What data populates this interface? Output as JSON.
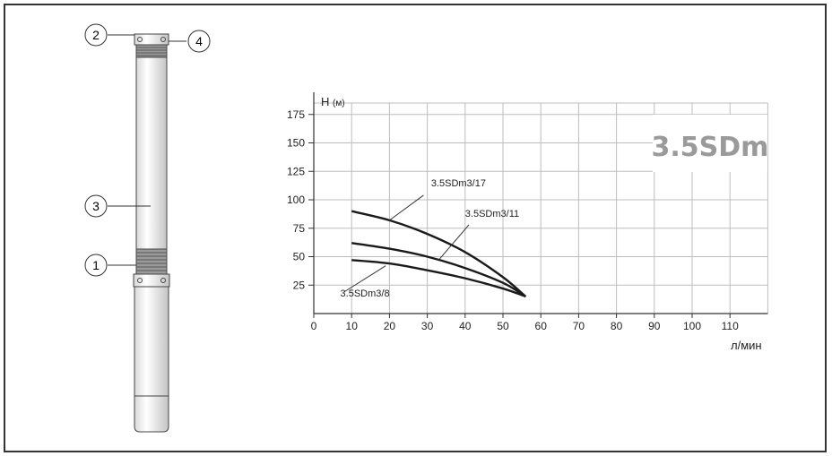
{
  "pump": {
    "callouts": [
      "1",
      "2",
      "3",
      "4"
    ]
  },
  "chart_data": {
    "type": "line",
    "ylabel": "H",
    "ylabel_unit": "(м)",
    "xlabel": "л/мин",
    "model_badge": "3.5SDm",
    "x_ticks": [
      0,
      10,
      20,
      30,
      40,
      50,
      60,
      70,
      80,
      90,
      100,
      110
    ],
    "y_ticks": [
      25,
      50,
      75,
      100,
      125,
      150,
      175
    ],
    "xlim": [
      0,
      120
    ],
    "ylim": [
      0,
      185
    ],
    "grid": true,
    "series": [
      {
        "name": "3.5SDm3/17",
        "x": [
          10,
          20,
          30,
          40,
          50,
          56
        ],
        "y": [
          90,
          82,
          70,
          54,
          32,
          15
        ]
      },
      {
        "name": "3.5SDm3/11",
        "x": [
          10,
          20,
          30,
          40,
          50,
          56
        ],
        "y": [
          62,
          57,
          50,
          40,
          27,
          15
        ]
      },
      {
        "name": "3.5SDm3/8",
        "x": [
          10,
          20,
          30,
          40,
          50,
          56
        ],
        "y": [
          47,
          44,
          38,
          31,
          22,
          15
        ]
      }
    ],
    "colors": {
      "line": "#1a1a1a",
      "grid": "#bdbdbd",
      "badge_text": "#9a9a9a"
    }
  }
}
